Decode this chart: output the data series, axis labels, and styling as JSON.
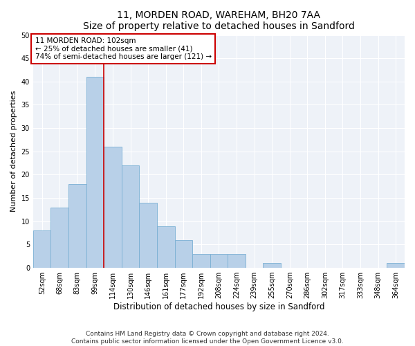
{
  "title1": "11, MORDEN ROAD, WAREHAM, BH20 7AA",
  "title2": "Size of property relative to detached houses in Sandford",
  "xlabel": "Distribution of detached houses by size in Sandford",
  "ylabel": "Number of detached properties",
  "bar_labels": [
    "52sqm",
    "68sqm",
    "83sqm",
    "99sqm",
    "114sqm",
    "130sqm",
    "146sqm",
    "161sqm",
    "177sqm",
    "192sqm",
    "208sqm",
    "224sqm",
    "239sqm",
    "255sqm",
    "270sqm",
    "286sqm",
    "302sqm",
    "317sqm",
    "333sqm",
    "348sqm",
    "364sqm"
  ],
  "bar_values": [
    8,
    13,
    18,
    41,
    26,
    22,
    14,
    9,
    6,
    3,
    3,
    3,
    0,
    1,
    0,
    0,
    0,
    0,
    0,
    0,
    1
  ],
  "bar_color": "#b8d0e8",
  "bar_edge_color": "#7aafd4",
  "property_label": "11 MORDEN ROAD: 102sqm",
  "annotation_line1": "← 25% of detached houses are smaller (41)",
  "annotation_line2": "74% of semi-detached houses are larger (121) →",
  "vline_color": "#cc0000",
  "vline_x": 3.5,
  "annotation_box_color": "#cc0000",
  "ylim": [
    0,
    50
  ],
  "yticks": [
    0,
    5,
    10,
    15,
    20,
    25,
    30,
    35,
    40,
    45,
    50
  ],
  "footer_line1": "Contains HM Land Registry data © Crown copyright and database right 2024.",
  "footer_line2": "Contains public sector information licensed under the Open Government Licence v3.0.",
  "bg_color": "#eef2f8",
  "title1_fontsize": 10,
  "title2_fontsize": 9,
  "xlabel_fontsize": 8.5,
  "ylabel_fontsize": 8,
  "tick_fontsize": 7,
  "annotation_fontsize": 7.5,
  "footer_fontsize": 6.5
}
